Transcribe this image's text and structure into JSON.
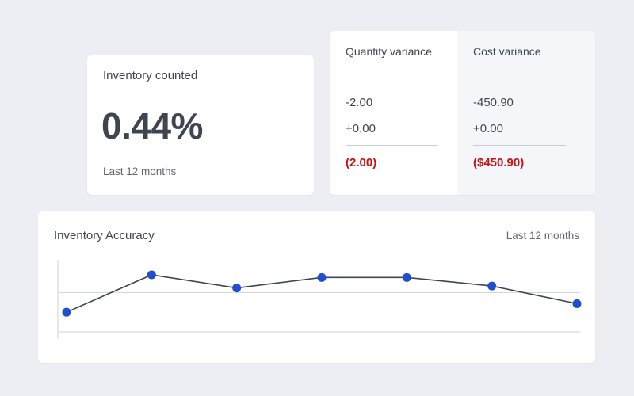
{
  "counted_card": {
    "title": "Inventory counted",
    "value": "0.44%",
    "period": "Last 12 months"
  },
  "variance_card": {
    "quantity": {
      "heading": "Quantity variance",
      "line1": "-2.00",
      "line2": "+0.00",
      "total": "(2.00)"
    },
    "cost": {
      "heading": "Cost variance",
      "line1": "-450.90",
      "line2": "+0.00",
      "total": "($450.90)"
    },
    "total_color": "#cc1111"
  },
  "accuracy_card": {
    "title": "Inventory Accuracy",
    "period": "Last 12 months"
  },
  "colors": {
    "background": "#eceef3",
    "line": "#3f4450",
    "point": "#1f4fcf",
    "gridline": "#cfd2d8"
  },
  "chart_data": {
    "type": "line",
    "points": [
      {
        "x": 0,
        "y": 0.2
      },
      {
        "x": 1,
        "y": 0.77
      },
      {
        "x": 2,
        "y": 0.57
      },
      {
        "x": 3,
        "y": 0.73
      },
      {
        "x": 4,
        "y": 0.73
      },
      {
        "x": 5,
        "y": 0.6
      },
      {
        "x": 6,
        "y": 0.33
      }
    ],
    "x_range": [
      0,
      6
    ],
    "y_range": [
      -0.1,
      1
    ],
    "gridline_value": 0.5,
    "grid": true,
    "legend": "none"
  }
}
